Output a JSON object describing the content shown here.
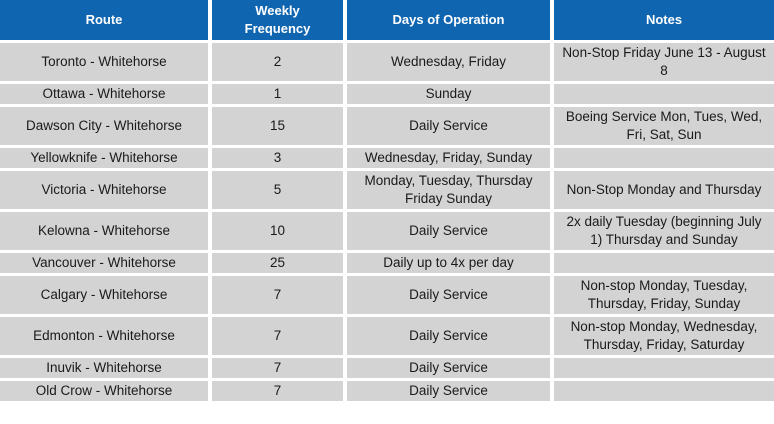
{
  "theme": {
    "header_bg": "#1065B1",
    "header_text": "#FFFFFF",
    "row_bg": "#D3D3D3",
    "body_text": "#1A1A1A",
    "grid_color": "#FFFFFF"
  },
  "table": {
    "columns": {
      "route": "Route",
      "frequency": "Weekly Frequency",
      "days": "Days of Operation",
      "notes": "Notes"
    },
    "rows": [
      {
        "route": "Toronto - Whitehorse",
        "frequency": "2",
        "days": "Wednesday, Friday",
        "notes": "Non-Stop Friday June 13 - August 8"
      },
      {
        "route": "Ottawa - Whitehorse",
        "frequency": "1",
        "days": "Sunday",
        "notes": ""
      },
      {
        "route": "Dawson City - Whitehorse",
        "frequency": "15",
        "days": "Daily Service",
        "notes": "Boeing Service Mon, Tues, Wed, Fri, Sat, Sun"
      },
      {
        "route": "Yellowknife - Whitehorse",
        "frequency": "3",
        "days": "Wednesday, Friday, Sunday",
        "notes": ""
      },
      {
        "route": "Victoria - Whitehorse",
        "frequency": "5",
        "days": "Monday, Tuesday, Thursday Friday Sunday",
        "notes": "Non-Stop Monday and Thursday"
      },
      {
        "route": "Kelowna - Whitehorse",
        "frequency": "10",
        "days": "Daily Service",
        "notes": "2x daily Tuesday (beginning July 1) Thursday and Sunday"
      },
      {
        "route": "Vancouver - Whitehorse",
        "frequency": "25",
        "days": "Daily up to 4x per day",
        "notes": ""
      },
      {
        "route": "Calgary - Whitehorse",
        "frequency": "7",
        "days": "Daily Service",
        "notes": "Non-stop Monday, Tuesday, Thursday, Friday, Sunday"
      },
      {
        "route": "Edmonton - Whitehorse",
        "frequency": "7",
        "days": "Daily Service",
        "notes": "Non-stop Monday, Wednesday, Thursday, Friday, Saturday"
      },
      {
        "route": "Inuvik - Whitehorse",
        "frequency": "7",
        "days": "Daily Service",
        "notes": ""
      },
      {
        "route": "Old Crow - Whitehorse",
        "frequency": "7",
        "days": "Daily Service",
        "notes": ""
      }
    ]
  }
}
